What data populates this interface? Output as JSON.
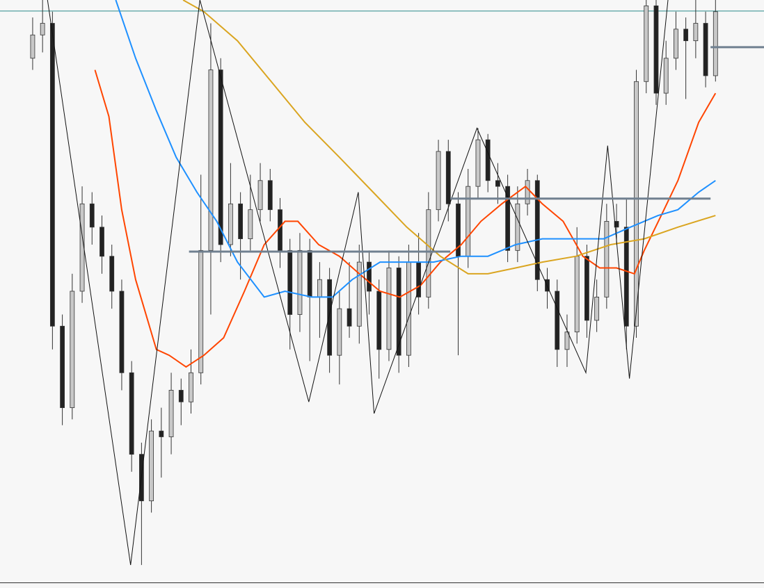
{
  "chart_data": {
    "type": "candlestick",
    "xlim": [
      -3.3,
      73.9
    ],
    "ylim": [
      0,
      100
    ],
    "bull_color": "#c8c8c8",
    "bear_color": "#222222",
    "open": [
      90,
      94,
      96,
      44,
      30,
      50,
      65,
      61,
      56,
      50,
      36,
      22,
      14,
      26,
      25,
      33,
      31,
      36,
      57,
      88,
      58,
      65,
      59,
      64,
      69,
      64,
      57,
      46,
      57,
      49,
      52,
      39,
      47,
      44,
      55,
      50,
      40,
      54,
      39,
      55,
      49,
      64,
      74,
      65,
      56,
      68,
      76,
      69,
      68,
      57,
      65,
      69,
      52,
      50,
      40,
      43,
      56,
      45,
      49,
      62,
      61,
      44,
      86,
      99,
      84,
      90,
      95,
      93,
      96,
      87
    ],
    "high": [
      97,
      100,
      98,
      46,
      53,
      68,
      67,
      63,
      58,
      52,
      38,
      24,
      28,
      30,
      36,
      35,
      40,
      70,
      96,
      90,
      72,
      67,
      70,
      72,
      71,
      66,
      59,
      60,
      59,
      55,
      54,
      50,
      55,
      58,
      57,
      52,
      57,
      56,
      58,
      60,
      67,
      76,
      76,
      67,
      71,
      78,
      77,
      72,
      70,
      68,
      71,
      70,
      54,
      52,
      46,
      61,
      58,
      52,
      65,
      65,
      66,
      88,
      100,
      100,
      93,
      98,
      97,
      100,
      98,
      100
    ],
    "low": [
      88,
      91,
      40,
      27,
      28,
      48,
      58,
      53,
      47,
      33,
      19,
      3,
      12,
      18,
      22,
      27,
      29,
      34,
      46,
      55,
      56,
      52,
      57,
      62,
      62,
      54,
      40,
      43,
      38,
      42,
      36,
      34,
      42,
      41,
      46,
      35,
      38,
      36,
      37,
      46,
      47,
      62,
      62,
      39,
      54,
      66,
      67,
      65,
      55,
      55,
      63,
      50,
      47,
      37,
      37,
      41,
      42,
      43,
      47,
      58,
      40,
      42,
      84,
      82,
      82,
      88,
      83,
      90,
      85,
      86
    ],
    "close": [
      94,
      96,
      44,
      30,
      50,
      65,
      61,
      56,
      50,
      36,
      22,
      14,
      26,
      25,
      33,
      31,
      36,
      57,
      88,
      58,
      65,
      59,
      64,
      69,
      64,
      57,
      46,
      57,
      49,
      52,
      39,
      47,
      44,
      55,
      50,
      40,
      54,
      39,
      55,
      49,
      64,
      74,
      65,
      56,
      68,
      76,
      69,
      68,
      57,
      65,
      69,
      52,
      50,
      40,
      43,
      56,
      45,
      49,
      62,
      61,
      44,
      86,
      99,
      84,
      90,
      95,
      93,
      96,
      87,
      98
    ],
    "series": [
      {
        "color": "#ff4500",
        "x": [
          6.3,
          7.7,
          9.0,
          10.4,
          12.5,
          13.8,
          15.5,
          17.3,
          19.3,
          21.4,
          23.4,
          25.5,
          26.8,
          28.9,
          31.0,
          33.0,
          35.1,
          37.1,
          39.2,
          41.2,
          43.3,
          45.3,
          47.4,
          49.8,
          51.5,
          53.6,
          55.6,
          57.3,
          59.0,
          60.8,
          61.8,
          63.8,
          65.2,
          67.3,
          69
        ],
        "values": [
          88,
          80,
          64,
          52,
          40,
          39,
          37,
          39,
          42,
          50,
          58,
          62,
          62,
          58,
          56,
          53,
          50,
          49,
          51,
          55,
          58,
          62,
          65,
          68,
          65,
          62,
          56,
          54,
          54,
          53,
          57,
          64,
          69,
          79,
          84
        ]
      },
      {
        "color": "#1e90ff",
        "x": [
          8.4,
          10.4,
          12.5,
          14.5,
          16.6,
          18.6,
          20.7,
          23.4,
          25.5,
          28.2,
          30.3,
          32.3,
          35.1,
          37.8,
          40.5,
          43.3,
          46.0,
          48.8,
          51.5,
          54.9,
          57.7,
          60.4,
          63.2,
          65.2,
          67.3,
          69
        ],
        "values": [
          100,
          90,
          81,
          73,
          67,
          62,
          55,
          49,
          50,
          49,
          49,
          52,
          55,
          55,
          55,
          56,
          56,
          58,
          59,
          59,
          59,
          61,
          63,
          64,
          67,
          69
        ]
      },
      {
        "color": "#daa520",
        "x": [
          15.2,
          17.3,
          20.7,
          24.1,
          27.5,
          31.0,
          34.4,
          37.8,
          41.2,
          44.0,
          46.0,
          48.8,
          51.5,
          54.9,
          58.4,
          61.8,
          65.2,
          69
        ],
        "values": [
          100,
          98,
          93,
          86,
          79,
          73,
          67,
          61,
          56,
          53,
          53,
          54,
          55,
          56,
          58,
          59,
          61,
          63
        ]
      }
    ],
    "zigzag": {
      "color": "#111111",
      "x": [
        1.5,
        9.9,
        16.9,
        27.9,
        32.9,
        34.5,
        44.9,
        55.9,
        58.1,
        60.3,
        64.2
      ],
      "values": [
        100,
        3,
        100,
        31,
        67,
        29,
        78,
        36,
        75,
        35,
        100
      ]
    },
    "levels": [
      {
        "color": "#708090",
        "x": [
          15.8,
          42.2
        ],
        "value": 56.8
      },
      {
        "color": "#708090",
        "x": [
          42.2,
          68.5
        ],
        "value": 65.9
      },
      {
        "color": "#708090",
        "x": [
          68.5,
          73.9
        ],
        "value": 91.9
      }
    ],
    "hline": {
      "color": "#2a8a8a",
      "value": 98.1
    }
  }
}
